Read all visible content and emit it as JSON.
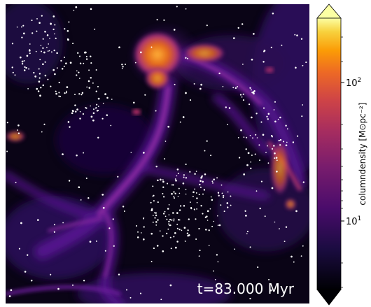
{
  "simulation_map": {
    "time_label": "t=83.000 Myr",
    "colormap": "inferno",
    "scale": "log",
    "colorbar": {
      "label": "columndensity [M⊙pc⁻²]",
      "ticks": [
        {
          "value": 100,
          "base": "10",
          "exp": "2"
        },
        {
          "value": 10,
          "base": "10",
          "exp": "1"
        }
      ],
      "extend": "both"
    },
    "colors": {
      "background": "#0a0416",
      "filament": "#6a1aa6",
      "hot": "#f0901a",
      "stars": "#ffffff"
    }
  }
}
